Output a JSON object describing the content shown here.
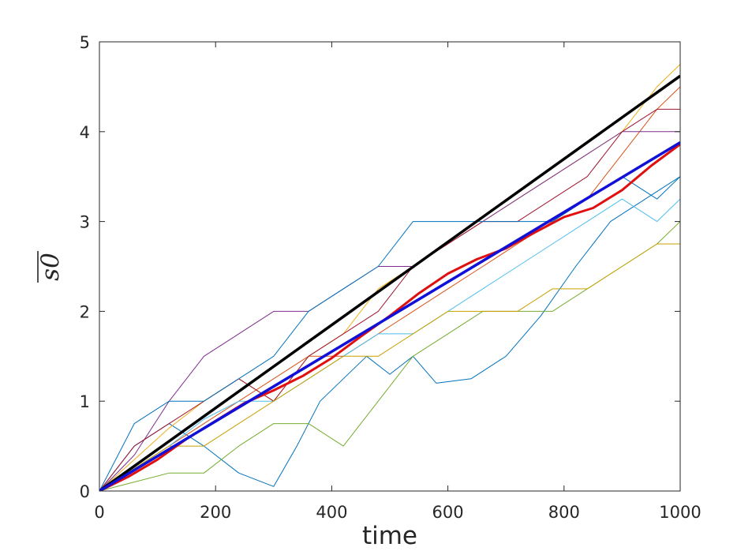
{
  "chart_data": {
    "type": "line",
    "title": "",
    "xlabel": "time",
    "ylabel": "s0",
    "ylabel_overline": true,
    "xlim": [
      0,
      1000
    ],
    "ylim": [
      0,
      5
    ],
    "xticks": [
      0,
      200,
      400,
      600,
      800,
      1000
    ],
    "yticks": [
      0,
      1,
      2,
      3,
      4,
      5
    ],
    "xtick_labels": [
      "0",
      "200",
      "400",
      "600",
      "800",
      "1000"
    ],
    "ytick_labels": [
      "0",
      "1",
      "2",
      "3",
      "4",
      "5"
    ],
    "grid": false,
    "legend": "none",
    "series": [
      {
        "color": "#000000",
        "width": 3.5,
        "x": [
          0,
          1000
        ],
        "y": [
          0,
          4.62
        ]
      },
      {
        "color": "#1010d8",
        "width": 3.5,
        "x": [
          0,
          1000
        ],
        "y": [
          0,
          3.88
        ]
      },
      {
        "color": "#e01010",
        "width": 3,
        "x": [
          0,
          50,
          100,
          150,
          200,
          250,
          300,
          350,
          400,
          450,
          500,
          550,
          600,
          650,
          700,
          750,
          800,
          850,
          900,
          950,
          1000
        ],
        "y": [
          0,
          0.16,
          0.35,
          0.58,
          0.78,
          0.98,
          1.12,
          1.28,
          1.48,
          1.72,
          1.95,
          2.2,
          2.42,
          2.58,
          2.7,
          2.88,
          3.05,
          3.15,
          3.35,
          3.62,
          3.86
        ]
      },
      {
        "color": "#0072bd",
        "width": 1,
        "x": [
          0,
          60,
          120,
          180,
          240,
          300,
          340,
          380,
          420,
          460,
          500,
          540,
          580,
          640,
          700,
          760,
          820,
          880,
          940,
          1000
        ],
        "y": [
          0,
          0.5,
          0.75,
          0.5,
          0.2,
          0.05,
          0.5,
          1.0,
          1.25,
          1.5,
          1.3,
          1.5,
          1.2,
          1.25,
          1.5,
          1.95,
          2.5,
          3.0,
          3.25,
          3.5
        ]
      },
      {
        "color": "#d95319",
        "width": 1,
        "x": [
          0,
          60,
          120,
          180,
          240,
          300,
          360,
          420,
          480,
          540,
          600,
          660,
          720,
          780,
          840,
          900,
          960,
          1000
        ],
        "y": [
          0,
          0.25,
          0.5,
          0.75,
          1.0,
          1.25,
          1.5,
          1.5,
          1.75,
          2.0,
          2.25,
          2.5,
          2.75,
          3.0,
          3.25,
          3.75,
          4.25,
          4.5
        ]
      },
      {
        "color": "#edb120",
        "width": 1,
        "x": [
          0,
          60,
          120,
          180,
          240,
          300,
          360,
          420,
          480,
          540,
          600,
          660,
          720,
          780,
          840,
          900,
          960,
          1000
        ],
        "y": [
          0,
          0.35,
          0.7,
          1.0,
          1.25,
          1.0,
          1.5,
          1.75,
          2.25,
          2.5,
          2.75,
          3.0,
          3.25,
          3.5,
          3.75,
          4.0,
          4.5,
          4.75
        ]
      },
      {
        "color": "#7e2f8e",
        "width": 1,
        "x": [
          0,
          60,
          120,
          180,
          240,
          300,
          360,
          420,
          480,
          540,
          600,
          660,
          720,
          780,
          840,
          900,
          960,
          1000
        ],
        "y": [
          0,
          0.4,
          1.0,
          1.5,
          1.75,
          2.0,
          2.0,
          2.25,
          2.5,
          2.5,
          2.75,
          3.0,
          3.25,
          3.5,
          3.75,
          4.0,
          4.0,
          4.0
        ]
      },
      {
        "color": "#77ac30",
        "width": 1,
        "x": [
          0,
          60,
          120,
          180,
          240,
          300,
          360,
          420,
          480,
          540,
          600,
          660,
          720,
          780,
          840,
          900,
          960,
          1000
        ],
        "y": [
          0,
          0.1,
          0.2,
          0.2,
          0.5,
          0.75,
          0.75,
          0.5,
          1.0,
          1.5,
          1.75,
          2.0,
          2.0,
          2.0,
          2.25,
          2.5,
          2.75,
          3.0
        ]
      },
      {
        "color": "#4dbeee",
        "width": 1,
        "x": [
          0,
          60,
          120,
          180,
          240,
          300,
          360,
          420,
          480,
          540,
          600,
          660,
          720,
          780,
          840,
          900,
          960,
          1000
        ],
        "y": [
          0,
          0.25,
          0.5,
          0.8,
          1.0,
          1.0,
          1.25,
          1.5,
          1.75,
          1.75,
          2.0,
          2.25,
          2.5,
          2.75,
          3.0,
          3.25,
          3.0,
          3.25
        ]
      },
      {
        "color": "#a2142f",
        "width": 1,
        "x": [
          0,
          60,
          120,
          180,
          240,
          300,
          360,
          420,
          480,
          540,
          600,
          660,
          720,
          780,
          840,
          900,
          960,
          1000
        ],
        "y": [
          0,
          0.5,
          0.75,
          1.0,
          1.25,
          1.0,
          1.5,
          1.75,
          2.0,
          2.5,
          2.75,
          3.0,
          3.0,
          3.25,
          3.5,
          4.0,
          4.25,
          4.25
        ]
      },
      {
        "color": "#c8a000",
        "width": 1,
        "x": [
          0,
          60,
          120,
          180,
          240,
          300,
          360,
          420,
          480,
          540,
          600,
          660,
          720,
          780,
          840,
          900,
          960,
          1000
        ],
        "y": [
          0,
          0.25,
          0.5,
          0.5,
          0.75,
          1.0,
          1.25,
          1.5,
          1.5,
          1.75,
          2.0,
          2.0,
          2.0,
          2.25,
          2.25,
          2.5,
          2.75,
          2.75
        ]
      },
      {
        "color": "#0072bd",
        "width": 1,
        "x": [
          0,
          60,
          120,
          180,
          240,
          300,
          360,
          420,
          480,
          540,
          600,
          660,
          720,
          780,
          840,
          900,
          960,
          1000
        ],
        "y": [
          0,
          0.75,
          1.0,
          1.0,
          1.25,
          1.5,
          2.0,
          2.25,
          2.5,
          3.0,
          3.0,
          3.0,
          3.0,
          3.0,
          3.25,
          3.5,
          3.25,
          3.5
        ]
      }
    ]
  }
}
